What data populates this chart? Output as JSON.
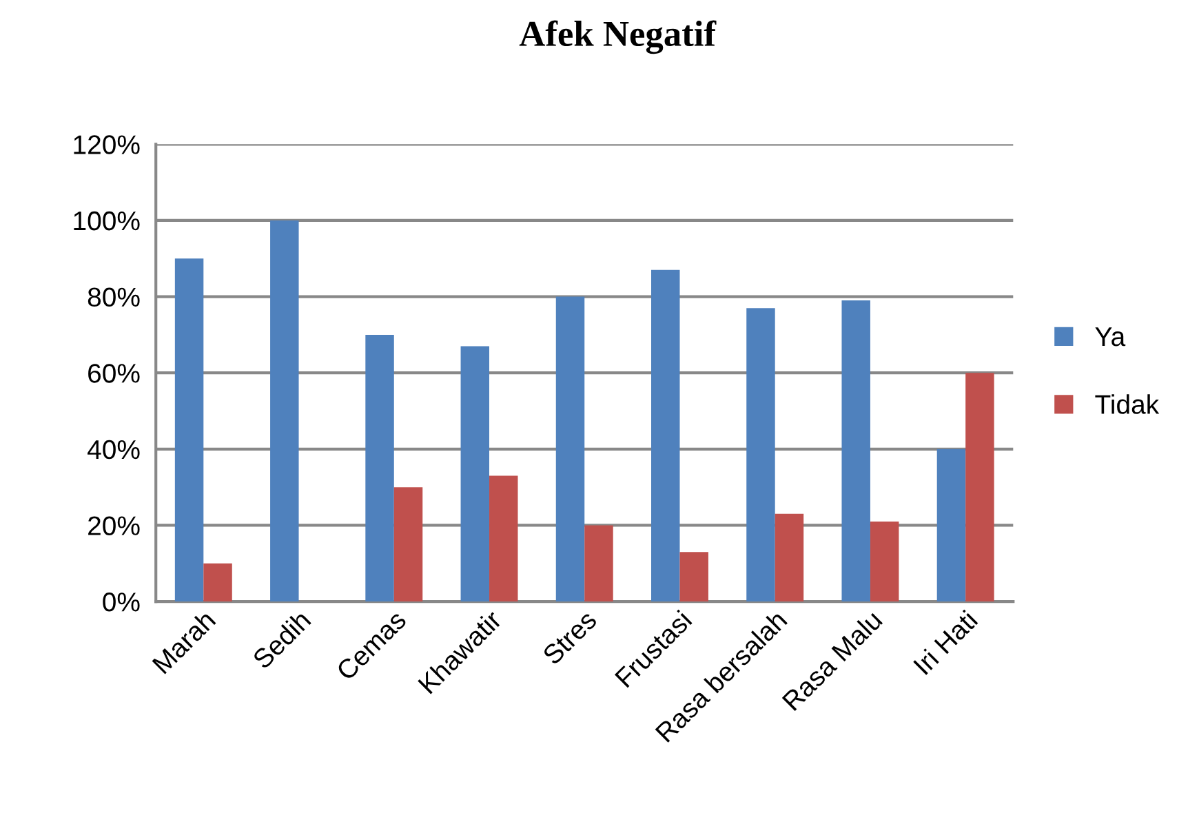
{
  "chart_data": {
    "type": "bar",
    "title": "Afek Negatif",
    "categories": [
      "Marah",
      "Sedih",
      "Cemas",
      "Khawatir",
      "Stres",
      "Frustasi",
      "Rasa bersalah",
      "Rasa Malu",
      "Iri Hati"
    ],
    "series": [
      {
        "name": "Ya",
        "color": "#4f81bd",
        "values": [
          90,
          100,
          70,
          67,
          80,
          87,
          77,
          79,
          40
        ]
      },
      {
        "name": "Tidak",
        "color": "#c0504d",
        "values": [
          10,
          0,
          30,
          33,
          20,
          13,
          23,
          21,
          60
        ]
      }
    ],
    "ylim": [
      0,
      120
    ],
    "yticks": [
      {
        "value": 0,
        "label": "0%"
      },
      {
        "value": 20,
        "label": "20%"
      },
      {
        "value": 40,
        "label": "40%"
      },
      {
        "value": 60,
        "label": "60%"
      },
      {
        "value": 80,
        "label": "80%"
      },
      {
        "value": 100,
        "label": "100%"
      },
      {
        "value": 120,
        "label": "120%"
      }
    ],
    "grid": "y",
    "legend": "right"
  }
}
